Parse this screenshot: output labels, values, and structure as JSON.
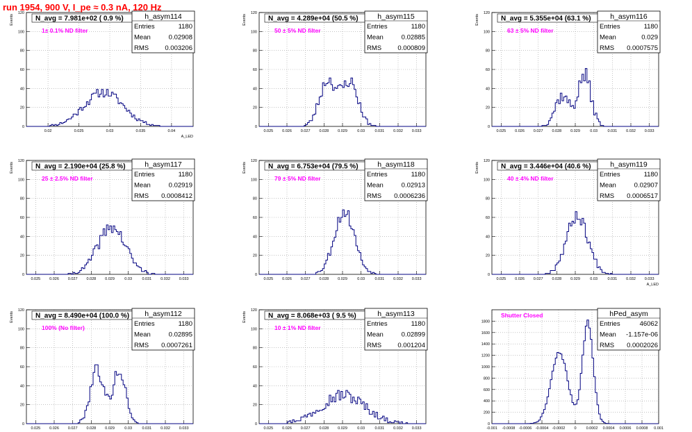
{
  "page": {
    "title": "run 1954,   900 V, I_pe ≈ 0.3 nA, 120 Hz"
  },
  "colors": {
    "hist": "#000080",
    "grid": "#9e9e9e",
    "magenta": "#ff00ff",
    "title_red": "#ff0000"
  },
  "chart_data": [
    {
      "type": "histogram",
      "name": "h_asym114",
      "info": "N_avg = 7.981e+02 ( 0.9 %)",
      "note": "1± 0.1% ND filter",
      "stats": {
        "entries": "1180",
        "mean": "0.02908",
        "rms": "0.003206"
      },
      "xlim": [
        0.0165,
        0.0435
      ],
      "ylim": [
        0,
        120
      ],
      "xticks": [
        0.02,
        0.025,
        0.03,
        0.035,
        0.04
      ],
      "xtick_labels": [
        "0.02",
        "0.025",
        "0.03",
        "0.035",
        "0.04"
      ],
      "yticks": [
        0,
        20,
        40,
        60,
        80,
        100,
        120
      ],
      "ylabel": "Events",
      "xlabel": "A_LED",
      "peaks": [
        {
          "mu": 0.029,
          "sig": 0.0032,
          "amp": 36
        }
      ],
      "noise": 3.5,
      "nbins": 100,
      "seed": 11
    },
    {
      "type": "histogram",
      "name": "h_asym115",
      "info": "N_avg = 4.289e+04 (50.5 %)",
      "note": "50 ± 5% ND filter",
      "stats": {
        "entries": "1180",
        "mean": "0.02885",
        "rms": "0.000809"
      },
      "xlim": [
        0.0245,
        0.0335
      ],
      "ylim": [
        0,
        120
      ],
      "xticks": [
        0.025,
        0.026,
        0.027,
        0.028,
        0.029,
        0.03,
        0.031,
        0.032,
        0.033
      ],
      "xtick_labels": [
        "0.025",
        "0.026",
        "0.027",
        "0.028",
        "0.029",
        "0.03",
        "0.031",
        "0.032",
        "0.033"
      ],
      "yticks": [
        0,
        20,
        40,
        60,
        80,
        100,
        120
      ],
      "ylabel": "Events",
      "xlabel": "",
      "peaks": [
        {
          "mu": 0.0282,
          "sig": 0.00045,
          "amp": 48
        },
        {
          "mu": 0.0294,
          "sig": 0.00045,
          "amp": 46
        }
      ],
      "noise": 5,
      "nbins": 100,
      "seed": 23
    },
    {
      "type": "histogram",
      "name": "h_asym116",
      "info": "N_avg = 5.355e+04 (63.1 %)",
      "note": "63 ± 5% ND filter",
      "stats": {
        "entries": "1180",
        "mean": "0.029",
        "rms": "0.0007575"
      },
      "xlim": [
        0.0245,
        0.0335
      ],
      "ylim": [
        0,
        120
      ],
      "xticks": [
        0.025,
        0.026,
        0.027,
        0.028,
        0.029,
        0.03,
        0.031,
        0.032,
        0.033
      ],
      "xtick_labels": [
        "0.025",
        "0.026",
        "0.027",
        "0.028",
        "0.029",
        "0.03",
        "0.031",
        "0.032",
        "0.033"
      ],
      "yticks": [
        0,
        20,
        40,
        60,
        80,
        100,
        120
      ],
      "ylabel": "Events",
      "xlabel": "",
      "peaks": [
        {
          "mu": 0.0283,
          "sig": 0.0004,
          "amp": 32
        },
        {
          "mu": 0.0295,
          "sig": 0.00035,
          "amp": 54
        }
      ],
      "noise": 5,
      "nbins": 100,
      "seed": 37
    },
    {
      "type": "histogram",
      "name": "h_asym117",
      "info": "N_avg = 2.190e+04 (25.8 %)",
      "note": "25 ± 2.5% ND filter",
      "stats": {
        "entries": "1180",
        "mean": "0.02919",
        "rms": "0.0008412"
      },
      "xlim": [
        0.0245,
        0.0335
      ],
      "ylim": [
        0,
        120
      ],
      "xticks": [
        0.025,
        0.026,
        0.027,
        0.028,
        0.029,
        0.03,
        0.031,
        0.032,
        0.033
      ],
      "xtick_labels": [
        "0.025",
        "0.026",
        "0.027",
        "0.028",
        "0.029",
        "0.03",
        "0.031",
        "0.032",
        "0.033"
      ],
      "yticks": [
        0,
        20,
        40,
        60,
        80,
        100,
        120
      ],
      "ylabel": "Events",
      "xlabel": "",
      "peaks": [
        {
          "mu": 0.0291,
          "sig": 0.00075,
          "amp": 50
        }
      ],
      "noise": 5,
      "nbins": 100,
      "seed": 41
    },
    {
      "type": "histogram",
      "name": "h_asym118",
      "info": "N_avg = 6.753e+04 (79.5 %)",
      "note": "79 ± 5% ND filter",
      "stats": {
        "entries": "1180",
        "mean": "0.02913",
        "rms": "0.0006236"
      },
      "xlim": [
        0.0245,
        0.0335
      ],
      "ylim": [
        0,
        120
      ],
      "xticks": [
        0.025,
        0.026,
        0.027,
        0.028,
        0.029,
        0.03,
        0.031,
        0.032,
        0.033
      ],
      "xtick_labels": [
        "0.025",
        "0.026",
        "0.027",
        "0.028",
        "0.029",
        "0.03",
        "0.031",
        "0.032",
        "0.033"
      ],
      "yticks": [
        0,
        20,
        40,
        60,
        80,
        100,
        120
      ],
      "ylabel": "Events",
      "xlabel": "",
      "peaks": [
        {
          "mu": 0.0291,
          "sig": 0.00055,
          "amp": 66
        }
      ],
      "noise": 5,
      "nbins": 100,
      "seed": 53
    },
    {
      "type": "histogram",
      "name": "h_asym119",
      "info": "N_avg = 3.446e+04 (40.6 %)",
      "note": "40 ± 4% ND filter",
      "stats": {
        "entries": "1180",
        "mean": "0.02907",
        "rms": "0.0006517"
      },
      "xlim": [
        0.0245,
        0.0335
      ],
      "ylim": [
        0,
        120
      ],
      "xticks": [
        0.025,
        0.026,
        0.027,
        0.028,
        0.029,
        0.03,
        0.031,
        0.032,
        0.033
      ],
      "xtick_labels": [
        "0.025",
        "0.026",
        "0.027",
        "0.028",
        "0.029",
        "0.03",
        "0.031",
        "0.032",
        "0.033"
      ],
      "yticks": [
        0,
        20,
        40,
        60,
        80,
        100,
        120
      ],
      "ylabel": "Events",
      "xlabel": "A_LED",
      "peaks": [
        {
          "mu": 0.0291,
          "sig": 0.00058,
          "amp": 62
        }
      ],
      "noise": 5,
      "nbins": 100,
      "seed": 67
    },
    {
      "type": "histogram",
      "name": "h_asym112",
      "info": "N_avg = 8.490e+04 (100.0 %)",
      "note": "100% (No filter)",
      "stats": {
        "entries": "1180",
        "mean": "0.02895",
        "rms": "0.0007261"
      },
      "xlim": [
        0.0245,
        0.0335
      ],
      "ylim": [
        0,
        120
      ],
      "xticks": [
        0.025,
        0.026,
        0.027,
        0.028,
        0.029,
        0.03,
        0.031,
        0.032,
        0.033
      ],
      "xtick_labels": [
        "0.025",
        "0.026",
        "0.027",
        "0.028",
        "0.029",
        "0.03",
        "0.031",
        "0.032",
        "0.033"
      ],
      "yticks": [
        0,
        20,
        40,
        60,
        80,
        100,
        120
      ],
      "ylabel": "Events",
      "xlabel": "A_LED",
      "peaks": [
        {
          "mu": 0.0283,
          "sig": 0.00035,
          "amp": 58
        },
        {
          "mu": 0.0295,
          "sig": 0.00035,
          "amp": 56
        }
      ],
      "noise": 5,
      "nbins": 100,
      "seed": 79
    },
    {
      "type": "histogram",
      "name": "h_asym113",
      "info": "N_avg = 8.068e+03 ( 9.5 %)",
      "note": "10 ± 1% ND filter",
      "stats": {
        "entries": "1180",
        "mean": "0.02899",
        "rms": "0.001204"
      },
      "xlim": [
        0.0245,
        0.0335
      ],
      "ylim": [
        0,
        120
      ],
      "xticks": [
        0.025,
        0.026,
        0.027,
        0.028,
        0.029,
        0.03,
        0.031,
        0.032,
        0.033
      ],
      "xtick_labels": [
        "0.025",
        "0.026",
        "0.027",
        "0.028",
        "0.029",
        "0.03",
        "0.031",
        "0.032",
        "0.033"
      ],
      "yticks": [
        0,
        20,
        40,
        60,
        80,
        100,
        120
      ],
      "ylabel": "Events",
      "xlabel": "A_LED",
      "peaks": [
        {
          "mu": 0.029,
          "sig": 0.0012,
          "amp": 30
        }
      ],
      "noise": 5,
      "nbins": 100,
      "seed": 97
    },
    {
      "type": "histogram",
      "name": "hPed_asym",
      "info": "",
      "note": "Shutter Closed",
      "stats": {
        "entries": "46062",
        "mean": "-1.157e-06",
        "rms": "0.0002026"
      },
      "xlim": [
        -0.001,
        0.001
      ],
      "ylim": [
        0,
        2000
      ],
      "xticks": [
        -0.001,
        -0.0008,
        -0.0006,
        -0.0004,
        -0.0002,
        0,
        0.0002,
        0.0004,
        0.0006,
        0.0008,
        0.001
      ],
      "xtick_labels": [
        "-0.001",
        "-0.0008",
        "-0.0006",
        "-0.0004",
        "-0.0002",
        "0",
        "0.0002",
        "0.0004",
        "0.0006",
        "0.0008",
        "0.001"
      ],
      "yticks": [
        0,
        200,
        400,
        600,
        800,
        1000,
        1200,
        1400,
        1600,
        1800
      ],
      "ylabel": "",
      "xlabel": "",
      "peaks": [
        {
          "mu": -0.00019,
          "sig": 0.0001,
          "amp": 1250
        },
        {
          "mu": 0.00015,
          "sig": 6.5e-05,
          "amp": 1780
        }
      ],
      "noise": 25,
      "nbins": 100,
      "seed": 7
    }
  ]
}
